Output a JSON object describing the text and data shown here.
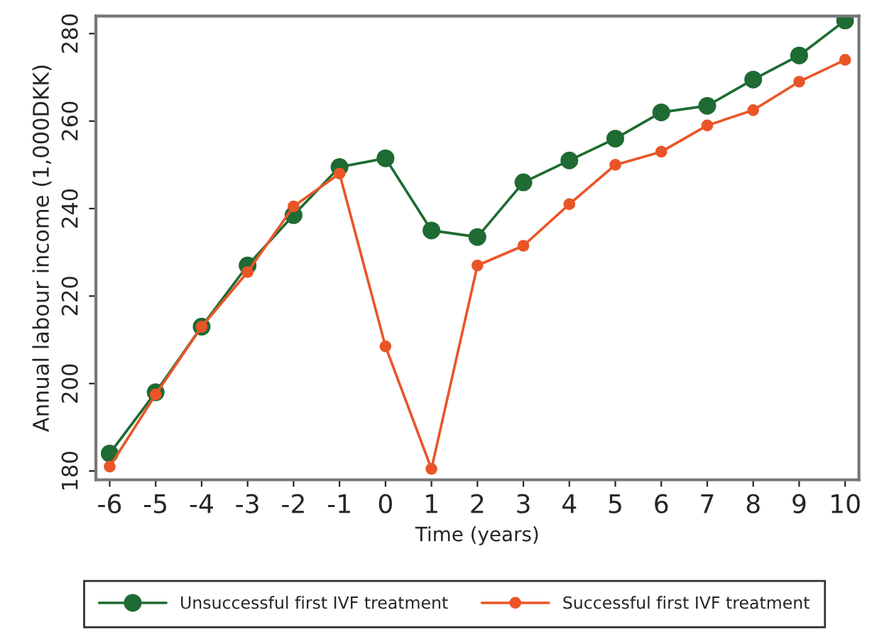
{
  "chart_data": {
    "type": "line",
    "xlabel": "Time (years)",
    "ylabel": "Annual labour income (1,000DKK)",
    "x": [
      -6,
      -5,
      -4,
      -3,
      -2,
      -1,
      0,
      1,
      2,
      3,
      4,
      5,
      6,
      7,
      8,
      9,
      10
    ],
    "series": [
      {
        "name": "Unsuccessful first IVF treatment",
        "color": "#1e6b33",
        "values": [
          184,
          198,
          213,
          227,
          238.5,
          249.5,
          251.5,
          235,
          233.5,
          246,
          251,
          256,
          262,
          263.5,
          269.5,
          275,
          283
        ]
      },
      {
        "name": "Successful first IVF treatment",
        "color": "#ea5527",
        "values": [
          181,
          197.5,
          213,
          225.5,
          240.5,
          248,
          208.5,
          180.5,
          227,
          231.5,
          241,
          250,
          253,
          259,
          262.5,
          269,
          274
        ]
      }
    ],
    "xlim": [
      -6.3,
      10.3
    ],
    "ylim": [
      178,
      284
    ],
    "xticks": [
      -6,
      -5,
      -4,
      -3,
      -2,
      -1,
      0,
      1,
      2,
      3,
      4,
      5,
      6,
      7,
      8,
      9,
      10
    ],
    "yticks": [
      180,
      200,
      220,
      240,
      260,
      280
    ],
    "grid": false,
    "legend": "bottom",
    "marker": "circle",
    "line_style": "solid"
  }
}
